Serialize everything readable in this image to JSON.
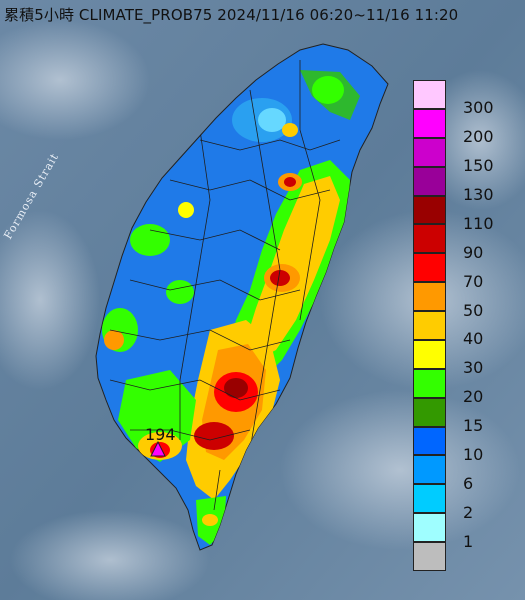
{
  "title": "累積5小時 CLIMATE_PROB75 2024/11/16 06:20~11/16 11:20",
  "map_labels": {
    "strait": "Formosa Strait",
    "max_value": "194"
  },
  "legend": [
    {
      "label": "300",
      "color": "#ffc8ff"
    },
    {
      "label": "200",
      "color": "#ff00ff"
    },
    {
      "label": "150",
      "color": "#cc00cc"
    },
    {
      "label": "130",
      "color": "#990099"
    },
    {
      "label": "110",
      "color": "#990000"
    },
    {
      "label": "90",
      "color": "#cc0000"
    },
    {
      "label": "70",
      "color": "#ff0000"
    },
    {
      "label": "50",
      "color": "#ff9900"
    },
    {
      "label": "40",
      "color": "#ffcc00"
    },
    {
      "label": "30",
      "color": "#ffff00"
    },
    {
      "label": "20",
      "color": "#33ff00"
    },
    {
      "label": "15",
      "color": "#339900"
    },
    {
      "label": "10",
      "color": "#0066ff"
    },
    {
      "label": "6",
      "color": "#0099ff"
    },
    {
      "label": "2",
      "color": "#00ccff"
    },
    {
      "label": "1",
      "color": "#9ffeff"
    },
    {
      "label": "",
      "color": "#bdbdbd"
    }
  ]
}
